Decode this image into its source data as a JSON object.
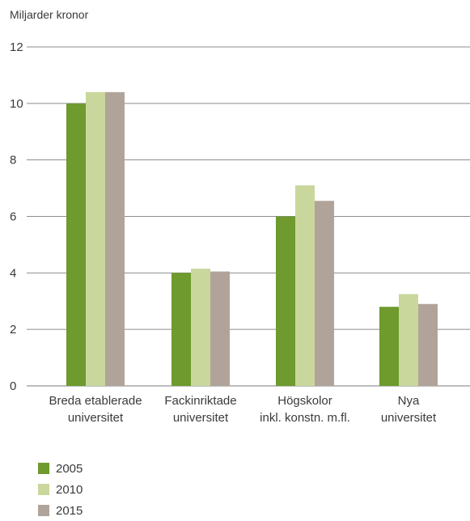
{
  "chart_data": {
    "type": "bar",
    "ylabel": "Miljarder kronor",
    "ylim": [
      0,
      12
    ],
    "yticks": [
      0,
      2,
      4,
      6,
      8,
      10,
      12
    ],
    "grid": true,
    "legend_position": "bottom-left",
    "categories": [
      [
        "Breda etablerade",
        "universitet"
      ],
      [
        "Fackinriktade",
        "universitet"
      ],
      [
        "Högskolor",
        "inkl. konstn. m.fl."
      ],
      [
        "Nya",
        "universitet"
      ]
    ],
    "series": [
      {
        "name": "2005",
        "color": "#6e9a2e",
        "values": [
          10.0,
          4.0,
          6.0,
          2.8
        ]
      },
      {
        "name": "2010",
        "color": "#c9d79c",
        "values": [
          10.4,
          4.15,
          7.1,
          3.25
        ]
      },
      {
        "name": "2015",
        "color": "#b0a49a",
        "values": [
          10.4,
          4.05,
          6.55,
          2.9
        ]
      }
    ]
  }
}
